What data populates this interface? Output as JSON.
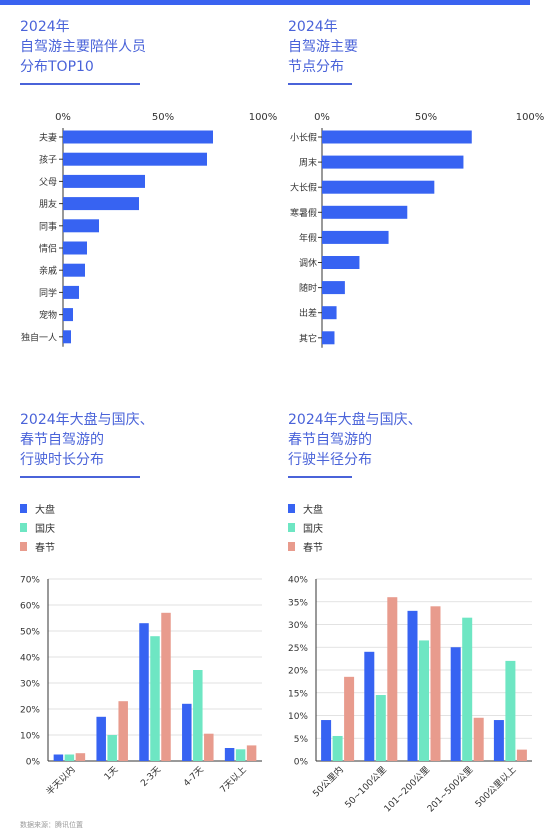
{
  "colors": {
    "accent": "#3a63f0",
    "blue": "#3763f2",
    "green": "#6ee6c3",
    "salmon": "#e89b8d",
    "axis": "#333333",
    "grid": "#d9d9d9"
  },
  "hbar_charts": [
    {
      "title_lines": [
        "2024年",
        "自驾游主要陪伴人员",
        "分布TOP10"
      ],
      "chart_data": {
        "type": "bar",
        "orientation": "horizontal",
        "categories": [
          "夫妻",
          "孩子",
          "父母",
          "朋友",
          "同事",
          "情侣",
          "亲戚",
          "同学",
          "宠物",
          "独自一人"
        ],
        "values": [
          75,
          72,
          41,
          38,
          18,
          12,
          11,
          8,
          5,
          4
        ],
        "unit": "%",
        "xlim": [
          0,
          100
        ],
        "xticks": [
          "0%",
          "50%",
          "100%"
        ]
      }
    },
    {
      "title_lines": [
        "2024年",
        "自驾游主要",
        "节点分布"
      ],
      "chart_data": {
        "type": "bar",
        "orientation": "horizontal",
        "categories": [
          "小长假",
          "周末",
          "大长假",
          "寒暑假",
          "年假",
          "调休",
          "随时",
          "出差",
          "其它"
        ],
        "values": [
          72,
          68,
          54,
          41,
          32,
          18,
          11,
          7,
          6
        ],
        "unit": "%",
        "xlim": [
          0,
          100
        ],
        "xticks": [
          "0%",
          "50%",
          "100%"
        ]
      }
    }
  ],
  "vbar_charts": [
    {
      "title_lines": [
        "2024年大盘与国庆、",
        "春节自驾游的",
        "行驶时长分布"
      ],
      "legend": [
        "大盘",
        "国庆",
        "春节"
      ],
      "chart_data": {
        "type": "bar",
        "categories": [
          "半天以内",
          "1天",
          "2-3天",
          "4-7天",
          "7天以上"
        ],
        "series": [
          {
            "name": "大盘",
            "values": [
              2.5,
              17,
              53,
              22,
              5
            ]
          },
          {
            "name": "国庆",
            "values": [
              2.5,
              10,
              48,
              35,
              4.5
            ]
          },
          {
            "name": "春节",
            "values": [
              3,
              23,
              57,
              10.5,
              6
            ]
          }
        ],
        "ylim": [
          0,
          70
        ],
        "yticks": [
          "0%",
          "10%",
          "20%",
          "30%",
          "40%",
          "50%",
          "60%",
          "70%"
        ]
      }
    },
    {
      "title_lines": [
        "2024年大盘与国庆、",
        "春节自驾游的",
        "行驶半径分布"
      ],
      "legend": [
        "大盘",
        "国庆",
        "春节"
      ],
      "chart_data": {
        "type": "bar",
        "categories": [
          "50公里内",
          "50~100公里",
          "101~200公里",
          "201~500公里",
          "500公里以上"
        ],
        "series": [
          {
            "name": "大盘",
            "values": [
              9,
              24,
              33,
              25,
              9
            ]
          },
          {
            "name": "国庆",
            "values": [
              5.5,
              14.5,
              26.5,
              31.5,
              22
            ]
          },
          {
            "name": "春节",
            "values": [
              18.5,
              36,
              34,
              9.5,
              2.5
            ]
          }
        ],
        "ylim": [
          0,
          40
        ],
        "yticks": [
          "0%",
          "5%",
          "10%",
          "15%",
          "20%",
          "25%",
          "30%",
          "35%",
          "40%"
        ]
      }
    }
  ],
  "source_text": "数据来源：腾讯位置"
}
